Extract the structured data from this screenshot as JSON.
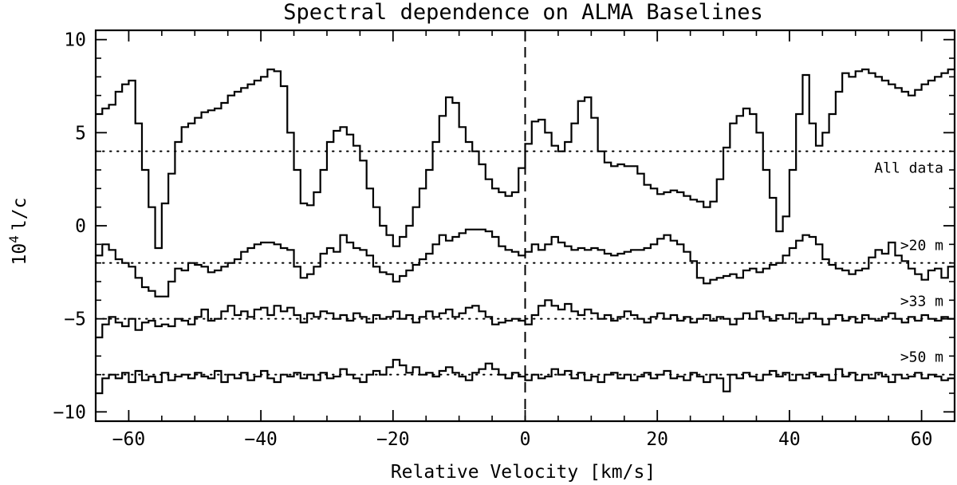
{
  "chart_data": {
    "type": "line",
    "title": "Spectral dependence on ALMA Baselines",
    "xlabel": "Relative Velocity [km/s]",
    "ylabel_base": "10",
    "ylabel_exp": "4",
    "ylabel_unit": "l/c",
    "xlim": [
      -65,
      65
    ],
    "ylim": [
      -10.5,
      10.5
    ],
    "xticks": [
      -60,
      -40,
      -20,
      0,
      20,
      40,
      60
    ],
    "xtick_labels": [
      "−60",
      "−40",
      "−20",
      "0",
      "20",
      "40",
      "60"
    ],
    "yticks": [
      10,
      5,
      0,
      -5,
      -10
    ],
    "ytick_labels": [
      "10",
      "5",
      "0",
      "−5",
      "−10"
    ],
    "x_minor_step": 5,
    "y_minor_step": 1,
    "vline_x": 0,
    "grid": false,
    "colors": {
      "line": "#000000",
      "background": "#ffffff"
    },
    "series": [
      {
        "name": "All data",
        "baseline": 4,
        "x": [
          -65,
          -64,
          -63,
          -62,
          -61,
          -60,
          -59,
          -58,
          -57,
          -56,
          -55,
          -54,
          -53,
          -52,
          -51,
          -50,
          -49,
          -48,
          -47,
          -46,
          -45,
          -44,
          -43,
          -42,
          -41,
          -40,
          -39,
          -38,
          -37,
          -36,
          -35,
          -34,
          -33,
          -32,
          -31,
          -30,
          -29,
          -28,
          -27,
          -26,
          -25,
          -24,
          -23,
          -22,
          -21,
          -20,
          -19,
          -18,
          -17,
          -16,
          -15,
          -14,
          -13,
          -12,
          -11,
          -10,
          -9,
          -8,
          -7,
          -6,
          -5,
          -4,
          -3,
          -2,
          -1,
          0,
          1,
          2,
          3,
          4,
          5,
          6,
          7,
          8,
          9,
          10,
          11,
          12,
          13,
          14,
          15,
          16,
          17,
          18,
          19,
          20,
          21,
          22,
          23,
          24,
          25,
          26,
          27,
          28,
          29,
          30,
          31,
          32,
          33,
          34,
          35,
          36,
          37,
          38,
          39,
          40,
          41,
          42,
          43,
          44,
          45,
          46,
          47,
          48,
          49,
          50,
          51,
          52,
          53,
          54,
          55,
          56,
          57,
          58,
          59,
          60,
          61,
          62,
          63,
          64
        ],
        "y": [
          6.0,
          6.3,
          6.5,
          7.2,
          7.6,
          7.8,
          5.5,
          3.0,
          1.0,
          -1.2,
          1.2,
          2.8,
          4.5,
          5.3,
          5.5,
          5.8,
          6.1,
          6.2,
          6.3,
          6.6,
          7.0,
          7.2,
          7.4,
          7.6,
          7.8,
          8.0,
          8.4,
          8.3,
          7.5,
          5.0,
          3.0,
          1.2,
          1.1,
          1.8,
          3.0,
          4.5,
          5.1,
          5.3,
          4.9,
          4.3,
          3.5,
          2.0,
          1.0,
          0.0,
          -0.5,
          -1.1,
          -0.6,
          0.0,
          1.0,
          2.0,
          3.0,
          4.5,
          5.9,
          6.9,
          6.6,
          5.3,
          4.5,
          4.0,
          3.3,
          2.5,
          2.0,
          1.8,
          1.6,
          1.8,
          3.1,
          4.4,
          5.6,
          5.7,
          5.0,
          4.3,
          4.0,
          4.5,
          5.5,
          6.7,
          6.9,
          5.8,
          4.0,
          3.4,
          3.2,
          3.3,
          3.2,
          3.2,
          2.8,
          2.2,
          2.0,
          1.7,
          1.8,
          1.9,
          1.8,
          1.6,
          1.4,
          1.3,
          1.0,
          1.3,
          2.5,
          4.2,
          5.5,
          5.9,
          6.3,
          6.0,
          5.0,
          3.0,
          1.5,
          -0.3,
          0.5,
          3.0,
          6.0,
          8.1,
          5.5,
          4.3,
          5.0,
          6.0,
          7.2,
          8.2,
          8.0,
          8.3,
          8.4,
          8.2,
          8.0,
          7.8,
          7.6,
          7.4,
          7.2,
          7.0,
          7.3,
          7.6,
          7.8,
          8.0,
          8.2,
          8.4
        ]
      },
      {
        "name": ">20 m",
        "baseline": -2,
        "x": [
          -65,
          -64,
          -63,
          -62,
          -61,
          -60,
          -59,
          -58,
          -57,
          -56,
          -55,
          -54,
          -53,
          -52,
          -51,
          -50,
          -49,
          -48,
          -47,
          -46,
          -45,
          -44,
          -43,
          -42,
          -41,
          -40,
          -39,
          -38,
          -37,
          -36,
          -35,
          -34,
          -33,
          -32,
          -31,
          -30,
          -29,
          -28,
          -27,
          -26,
          -25,
          -24,
          -23,
          -22,
          -21,
          -20,
          -19,
          -18,
          -17,
          -16,
          -15,
          -14,
          -13,
          -12,
          -11,
          -10,
          -9,
          -8,
          -7,
          -6,
          -5,
          -4,
          -3,
          -2,
          -1,
          0,
          1,
          2,
          3,
          4,
          5,
          6,
          7,
          8,
          9,
          10,
          11,
          12,
          13,
          14,
          15,
          16,
          17,
          18,
          19,
          20,
          21,
          22,
          23,
          24,
          25,
          26,
          27,
          28,
          29,
          30,
          31,
          32,
          33,
          34,
          35,
          36,
          37,
          38,
          39,
          40,
          41,
          42,
          43,
          44,
          45,
          46,
          47,
          48,
          49,
          50,
          51,
          52,
          53,
          54,
          55,
          56,
          57,
          58,
          59,
          60,
          61,
          62,
          63,
          64
        ],
        "y": [
          -1.6,
          -1.0,
          -1.3,
          -1.8,
          -2.0,
          -2.2,
          -2.8,
          -3.3,
          -3.5,
          -3.8,
          -3.8,
          -3.0,
          -2.3,
          -2.4,
          -2.0,
          -2.1,
          -2.2,
          -2.5,
          -2.4,
          -2.2,
          -2.0,
          -1.8,
          -1.4,
          -1.2,
          -1.0,
          -0.9,
          -0.9,
          -1.0,
          -1.2,
          -1.3,
          -2.2,
          -2.8,
          -2.6,
          -2.2,
          -1.5,
          -1.2,
          -1.4,
          -0.5,
          -0.9,
          -1.2,
          -1.3,
          -1.6,
          -2.2,
          -2.5,
          -2.6,
          -3.0,
          -2.7,
          -2.4,
          -2.1,
          -1.8,
          -1.5,
          -1.0,
          -0.5,
          -0.8,
          -0.6,
          -0.4,
          -0.2,
          -0.2,
          -0.2,
          -0.3,
          -0.6,
          -1.1,
          -1.3,
          -1.4,
          -1.6,
          -1.4,
          -1.0,
          -1.3,
          -1.0,
          -0.6,
          -0.9,
          -1.1,
          -1.3,
          -1.2,
          -1.3,
          -1.2,
          -1.3,
          -1.5,
          -1.6,
          -1.5,
          -1.4,
          -1.3,
          -1.3,
          -1.2,
          -1.0,
          -0.7,
          -0.5,
          -0.8,
          -1.0,
          -1.4,
          -1.9,
          -2.8,
          -3.1,
          -2.9,
          -2.8,
          -2.7,
          -2.6,
          -2.8,
          -2.4,
          -2.3,
          -2.5,
          -2.3,
          -2.1,
          -2.0,
          -1.6,
          -1.2,
          -0.8,
          -0.5,
          -0.6,
          -1.0,
          -1.8,
          -2.1,
          -2.3,
          -2.4,
          -2.6,
          -2.4,
          -2.3,
          -1.7,
          -1.3,
          -1.5,
          -0.9,
          -1.6,
          -1.9,
          -2.3,
          -2.6,
          -2.9,
          -2.4,
          -2.3,
          -2.8,
          -2.2
        ]
      },
      {
        "name": ">33 m",
        "baseline": -5,
        "x": [
          -65,
          -64,
          -63,
          -62,
          -61,
          -60,
          -59,
          -58,
          -57,
          -56,
          -55,
          -54,
          -53,
          -52,
          -51,
          -50,
          -49,
          -48,
          -47,
          -46,
          -45,
          -44,
          -43,
          -42,
          -41,
          -40,
          -39,
          -38,
          -37,
          -36,
          -35,
          -34,
          -33,
          -32,
          -31,
          -30,
          -29,
          -28,
          -27,
          -26,
          -25,
          -24,
          -23,
          -22,
          -21,
          -20,
          -19,
          -18,
          -17,
          -16,
          -15,
          -14,
          -13,
          -12,
          -11,
          -10,
          -9,
          -8,
          -7,
          -6,
          -5,
          -4,
          -3,
          -2,
          -1,
          0,
          1,
          2,
          3,
          4,
          5,
          6,
          7,
          8,
          9,
          10,
          11,
          12,
          13,
          14,
          15,
          16,
          17,
          18,
          19,
          20,
          21,
          22,
          23,
          24,
          25,
          26,
          27,
          28,
          29,
          30,
          31,
          32,
          33,
          34,
          35,
          36,
          37,
          38,
          39,
          40,
          41,
          42,
          43,
          44,
          45,
          46,
          47,
          48,
          49,
          50,
          51,
          52,
          53,
          54,
          55,
          56,
          57,
          58,
          59,
          60,
          61,
          62,
          63,
          64
        ],
        "y": [
          -6.0,
          -5.3,
          -4.9,
          -5.2,
          -5.4,
          -5.0,
          -5.6,
          -5.2,
          -5.1,
          -5.4,
          -5.3,
          -5.4,
          -5.0,
          -5.1,
          -5.3,
          -4.9,
          -4.5,
          -5.1,
          -5.0,
          -4.6,
          -4.3,
          -4.8,
          -4.6,
          -4.9,
          -4.5,
          -4.4,
          -4.8,
          -4.3,
          -4.6,
          -4.4,
          -4.8,
          -5.2,
          -4.7,
          -4.9,
          -4.6,
          -4.7,
          -5.0,
          -4.8,
          -5.1,
          -4.7,
          -4.9,
          -5.2,
          -4.8,
          -5.0,
          -4.9,
          -4.6,
          -5.0,
          -4.8,
          -5.2,
          -4.9,
          -4.6,
          -4.9,
          -4.7,
          -4.5,
          -4.9,
          -4.7,
          -4.4,
          -4.3,
          -4.6,
          -4.9,
          -5.3,
          -5.2,
          -5.1,
          -5.0,
          -5.1,
          -5.3,
          -4.8,
          -4.3,
          -4.0,
          -4.3,
          -4.5,
          -4.2,
          -4.6,
          -4.8,
          -4.5,
          -4.7,
          -5.0,
          -4.8,
          -5.1,
          -4.9,
          -4.6,
          -4.8,
          -5.0,
          -5.2,
          -4.9,
          -4.7,
          -5.0,
          -4.8,
          -5.1,
          -4.9,
          -5.2,
          -5.0,
          -4.8,
          -5.1,
          -4.9,
          -5.0,
          -5.3,
          -5.0,
          -4.7,
          -5.0,
          -4.6,
          -4.9,
          -5.1,
          -4.8,
          -5.0,
          -4.7,
          -5.2,
          -5.0,
          -4.7,
          -5.0,
          -5.3,
          -5.0,
          -4.8,
          -5.1,
          -4.9,
          -5.2,
          -4.8,
          -5.0,
          -5.1,
          -4.9,
          -4.7,
          -5.0,
          -5.2,
          -4.9,
          -5.1,
          -4.8,
          -5.0,
          -5.1,
          -4.9,
          -5.0
        ]
      },
      {
        "name": ">50 m",
        "baseline": -8,
        "x": [
          -65,
          -64,
          -63,
          -62,
          -61,
          -60,
          -59,
          -58,
          -57,
          -56,
          -55,
          -54,
          -53,
          -52,
          -51,
          -50,
          -49,
          -48,
          -47,
          -46,
          -45,
          -44,
          -43,
          -42,
          -41,
          -40,
          -39,
          -38,
          -37,
          -36,
          -35,
          -34,
          -33,
          -32,
          -31,
          -30,
          -29,
          -28,
          -27,
          -26,
          -25,
          -24,
          -23,
          -22,
          -21,
          -20,
          -19,
          -18,
          -17,
          -16,
          -15,
          -14,
          -13,
          -12,
          -11,
          -10,
          -9,
          -8,
          -7,
          -6,
          -5,
          -4,
          -3,
          -2,
          -1,
          0,
          1,
          2,
          3,
          4,
          5,
          6,
          7,
          8,
          9,
          10,
          11,
          12,
          13,
          14,
          15,
          16,
          17,
          18,
          19,
          20,
          21,
          22,
          23,
          24,
          25,
          26,
          27,
          28,
          29,
          30,
          31,
          32,
          33,
          34,
          35,
          36,
          37,
          38,
          39,
          40,
          41,
          42,
          43,
          44,
          45,
          46,
          47,
          48,
          49,
          50,
          51,
          52,
          53,
          54,
          55,
          56,
          57,
          58,
          59,
          60,
          61,
          62,
          63,
          64
        ],
        "y": [
          -9.0,
          -8.2,
          -8.0,
          -8.2,
          -7.9,
          -8.4,
          -7.8,
          -8.3,
          -8.1,
          -8.4,
          -7.9,
          -8.3,
          -8.1,
          -8.0,
          -8.2,
          -7.9,
          -8.1,
          -8.2,
          -7.8,
          -8.4,
          -8.0,
          -8.2,
          -7.9,
          -8.3,
          -8.1,
          -7.8,
          -8.2,
          -8.4,
          -8.0,
          -8.1,
          -7.9,
          -8.2,
          -8.0,
          -8.3,
          -7.9,
          -8.2,
          -8.1,
          -7.7,
          -8.0,
          -8.2,
          -8.4,
          -8.0,
          -7.8,
          -8.0,
          -7.6,
          -7.2,
          -7.5,
          -7.9,
          -7.6,
          -8.0,
          -7.9,
          -8.1,
          -7.8,
          -7.6,
          -7.9,
          -8.1,
          -8.3,
          -7.9,
          -7.7,
          -7.4,
          -7.7,
          -8.0,
          -8.2,
          -7.9,
          -8.1,
          -8.3,
          -8.0,
          -8.2,
          -8.1,
          -7.7,
          -8.0,
          -7.8,
          -8.2,
          -7.9,
          -8.3,
          -8.1,
          -8.4,
          -8.0,
          -7.9,
          -8.2,
          -8.0,
          -8.3,
          -8.1,
          -7.9,
          -8.2,
          -8.0,
          -7.8,
          -8.2,
          -8.1,
          -8.3,
          -7.9,
          -8.1,
          -8.4,
          -8.0,
          -8.2,
          -8.9,
          -8.0,
          -8.2,
          -7.9,
          -8.1,
          -8.3,
          -8.0,
          -7.8,
          -8.1,
          -7.9,
          -8.3,
          -8.0,
          -8.2,
          -7.9,
          -8.1,
          -8.0,
          -8.3,
          -7.7,
          -8.1,
          -7.9,
          -8.3,
          -8.0,
          -8.2,
          -7.9,
          -8.1,
          -8.4,
          -8.0,
          -8.2,
          -8.1,
          -7.9,
          -8.2,
          -8.0,
          -8.1,
          -8.3,
          -8.2
        ]
      }
    ]
  }
}
